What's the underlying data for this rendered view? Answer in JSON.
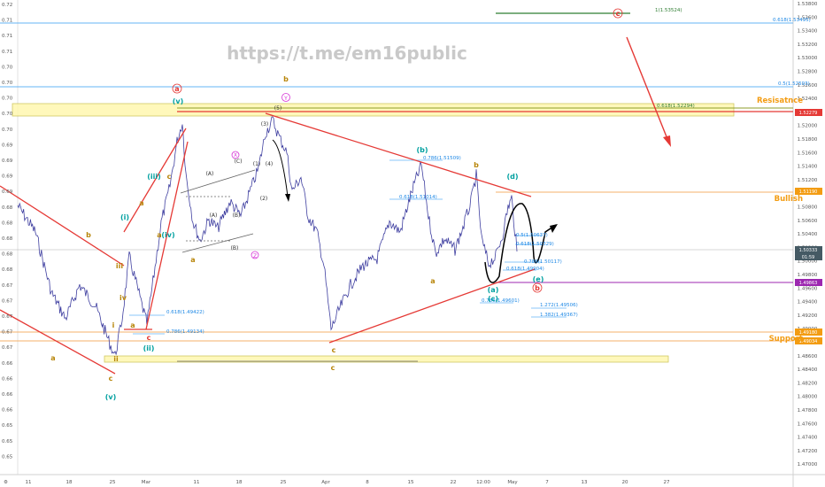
{
  "watermark": "https://t.me/em16public",
  "chart_data": {
    "type": "line",
    "right_axis_ticks": [
      "1.53800",
      "1.53600",
      "1.53400",
      "1.53200",
      "1.53000",
      "1.52800",
      "1.52600",
      "1.52400",
      "1.52200",
      "1.52000",
      "1.51800",
      "1.51600",
      "1.51400",
      "1.51200",
      "1.51000",
      "1.50800",
      "1.50600",
      "1.50400",
      "1.50200",
      "1.50000",
      "1.49800",
      "1.49600",
      "1.49400",
      "1.49200",
      "1.49000",
      "1.48800",
      "1.48600",
      "1.48400",
      "1.48200",
      "1.48000",
      "1.47800",
      "1.47600",
      "1.47400",
      "1.47200",
      "1.47000"
    ],
    "left_axis_ticks": [
      "0.72",
      "0.71",
      "0.71",
      "0.71",
      "0.70",
      "0.70",
      "0.70",
      "0.70",
      "0.70",
      "0.69",
      "0.69",
      "0.69",
      "0.69",
      "0.68",
      "0.68",
      "0.68",
      "0.68",
      "0.68",
      "0.67",
      "0.67",
      "0.67",
      "0.67",
      "0.67",
      "0.66",
      "0.66",
      "0.66",
      "0.66",
      "0.65",
      "0.65",
      "0.65"
    ],
    "x_ticks": [
      "11",
      "18",
      "25",
      "Mar",
      "11",
      "18",
      "25",
      "Apr",
      "8",
      "15",
      "22",
      "12:00",
      "May",
      "7",
      "13",
      "20",
      "27"
    ],
    "price_tags": [
      {
        "text": "1.52279",
        "color": "#e53935"
      },
      {
        "text": "1.51190",
        "color": "#f39c12"
      },
      {
        "text": "1.50333",
        "color": "#455a64"
      },
      {
        "text": "01:59",
        "color": "#455a64"
      },
      {
        "text": "1.49863",
        "color": "#9c27b0"
      },
      {
        "text": "1.49180",
        "color": "#f39c12"
      },
      {
        "text": "1.49034",
        "color": "#f39c12"
      }
    ],
    "side_labels": {
      "resistance": "Resisatnce",
      "bullish": "Bullish",
      "support": "Support"
    },
    "fib_labels": [
      {
        "text": "1(1.53524)",
        "color": "#2e7d32"
      },
      {
        "text": "0.618(1.53495)",
        "color": "#1e88e5"
      },
      {
        "text": "0.5(1.52593)",
        "color": "#1e88e5"
      },
      {
        "text": "0.618(1.52294)",
        "color": "#2e7d32"
      },
      {
        "text": "0.786(1.51509)",
        "color": "#1e88e5"
      },
      {
        "text": "0.618(1.51014)",
        "color": "#1e88e5"
      },
      {
        "text": "0.5(1.50637)",
        "color": "#1e88e5"
      },
      {
        "text": "0.618(1.50329)",
        "color": "#1e88e5"
      },
      {
        "text": "0.786(1.50117)",
        "color": "#1e88e5"
      },
      {
        "text": "0.618(1.49904)",
        "color": "#1e88e5"
      },
      {
        "text": "0.618(1.49422)",
        "color": "#1e88e5"
      },
      {
        "text": "0.786(1.49134)",
        "color": "#1e88e5"
      },
      {
        "text": "0.786(1.49601)",
        "color": "#1e88e5"
      },
      {
        "text": "1.272(1.49506)",
        "color": "#1e88e5"
      },
      {
        "text": "1.382(1.49367)",
        "color": "#1e88e5"
      }
    ],
    "wave_labels": [
      {
        "text": "a",
        "color": "#e53935"
      },
      {
        "text": "(v)",
        "color": "#00a0a0"
      },
      {
        "text": "b",
        "color": "#b8860b"
      },
      {
        "text": "Y",
        "color": "#d633d6"
      },
      {
        "text": "(b)",
        "color": "#00a0a0"
      },
      {
        "text": "(d)",
        "color": "#00a0a0"
      },
      {
        "text": "b",
        "color": "#b8860b"
      },
      {
        "text": "c",
        "color": "#e53935"
      },
      {
        "text": "(i)",
        "color": "#00a0a0"
      },
      {
        "text": "b",
        "color": "#b8860b"
      },
      {
        "text": "a",
        "color": "#b8860b"
      },
      {
        "text": "(iii)",
        "color": "#00a0a0"
      },
      {
        "text": "iii",
        "color": "#b8860b"
      },
      {
        "text": "iv",
        "color": "#b8860b"
      },
      {
        "text": "i",
        "color": "#b8860b"
      },
      {
        "text": "ii",
        "color": "#b8860b"
      },
      {
        "text": "a",
        "color": "#b8860b"
      },
      {
        "text": "c",
        "color": "#e53935"
      },
      {
        "text": "(ii)",
        "color": "#00a0a0"
      },
      {
        "text": "a",
        "color": "#b8860b"
      },
      {
        "text": "c",
        "color": "#b8860b"
      },
      {
        "text": "(v)",
        "color": "#00a0a0"
      },
      {
        "text": "(iv)",
        "color": "#00a0a0"
      },
      {
        "text": "a",
        "color": "#b8860b"
      },
      {
        "text": "c",
        "color": "#b8860b"
      },
      {
        "text": "a",
        "color": "#b8860b"
      },
      {
        "text": "X",
        "color": "#d633d6"
      },
      {
        "text": "Z",
        "color": "#d633d6"
      },
      {
        "text": "(A)",
        "color": "#333333"
      },
      {
        "text": "(B)",
        "color": "#333333"
      },
      {
        "text": "(C)",
        "color": "#333333"
      },
      {
        "text": "(B)",
        "color": "#333333"
      },
      {
        "text": "(A)",
        "color": "#333333"
      },
      {
        "text": "(1)",
        "color": "#333333"
      },
      {
        "text": "(2)",
        "color": "#333333"
      },
      {
        "text": "(3)",
        "color": "#333333"
      },
      {
        "text": "(4)",
        "color": "#333333"
      },
      {
        "text": "(5)",
        "color": "#333333"
      },
      {
        "text": "a",
        "color": "#b8860b"
      },
      {
        "text": "c",
        "color": "#b8860b"
      },
      {
        "text": "(a)",
        "color": "#00a0a0"
      },
      {
        "text": "c",
        "color": "#b8860b"
      },
      {
        "text": "(c)",
        "color": "#00a0a0"
      },
      {
        "text": "(e)",
        "color": "#00a0a0"
      },
      {
        "text": "b",
        "color": "#e53935"
      },
      {
        "text": "c",
        "color": "#e53935"
      }
    ]
  }
}
